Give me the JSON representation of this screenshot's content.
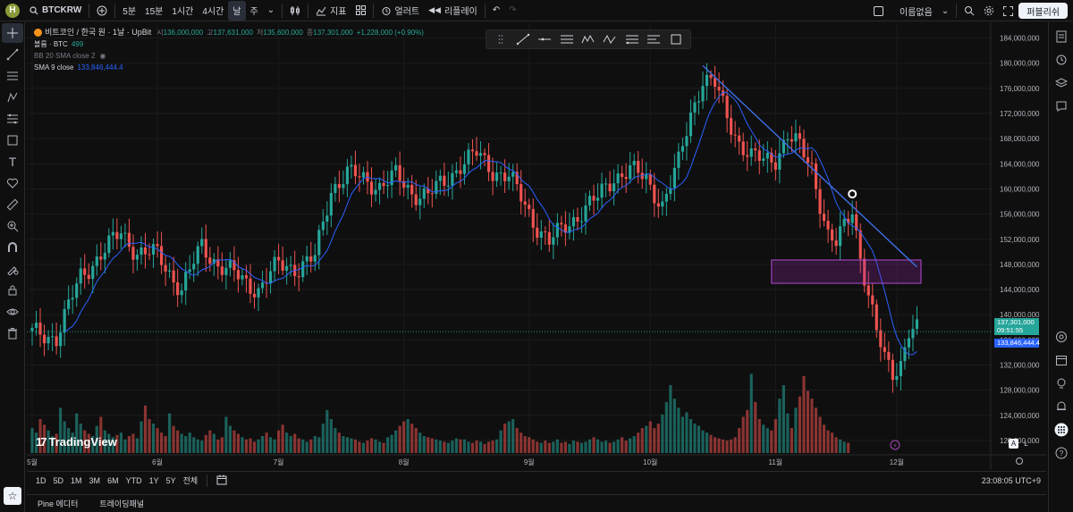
{
  "topbar": {
    "avatar_letter": "H",
    "symbol": "BTCKRW",
    "timeframes": [
      "5분",
      "15분",
      "1시간",
      "4시간",
      "날",
      "주"
    ],
    "active_timeframe": "날",
    "indicators_label": "지표",
    "alert_label": "얼러트",
    "replay_label": "리플레이",
    "layout_name": "이름없음",
    "publish_label": "퍼블리쉬"
  },
  "legend": {
    "title": "비트코인 / 한국 원 · 1날 · UpBit",
    "open_label": "시",
    "open": "136,000,000",
    "high_label": "고",
    "high": "137,631,000",
    "low_label": "저",
    "low": "135,600,000",
    "close_label": "종",
    "close": "137,301,000",
    "change": "+1,228,000 (+0.90%)",
    "volume_label": "볼륨 · BTC",
    "volume": "499",
    "bb_label": "BB 20 SMA close 2",
    "sma_label": "SMA 9 close",
    "sma_value": "133,846,444.4"
  },
  "price_tags": {
    "last_price": "137,301,000",
    "countdown": "09:51:55",
    "sma_value": "133,846,444.4"
  },
  "scale_buttons": [
    "A",
    "L"
  ],
  "range_buttons": [
    "1D",
    "5D",
    "1M",
    "3M",
    "6M",
    "YTD",
    "1Y",
    "5Y",
    "전체"
  ],
  "clock": "23:08:05 UTC+9",
  "panels": [
    "Pine 에디터",
    "트레이딩패널"
  ],
  "logo_text": "TradingView",
  "colors": {
    "up": "#26a69a",
    "down": "#ef5350",
    "sma": "#2962ff",
    "trendline": "#3d6fe6",
    "zone": "#9c27b0",
    "background": "#0f0f0f"
  },
  "chart_data": {
    "type": "candlestick",
    "series_name": "BTCKRW",
    "y_ticks": [
      120000000,
      124000000,
      128000000,
      132000000,
      136000000,
      140000000,
      144000000,
      148000000,
      152000000,
      156000000,
      160000000,
      164000000,
      168000000,
      172000000,
      176000000,
      180000000,
      184000000
    ],
    "ylim": [
      118000000,
      186500000
    ],
    "x_labels": [
      "5월",
      "6월",
      "7월",
      "8월",
      "9월",
      "10월",
      "11월",
      "12월"
    ],
    "x_label_index": [
      0,
      31,
      61,
      92,
      123,
      153,
      184,
      214
    ],
    "close_path": [
      [
        0,
        137000000
      ],
      [
        6,
        136500000
      ],
      [
        12,
        146000000
      ],
      [
        16,
        149000000
      ],
      [
        22,
        153000000
      ],
      [
        26,
        150000000
      ],
      [
        31,
        149500000
      ],
      [
        37,
        144000000
      ],
      [
        42,
        151000000
      ],
      [
        46,
        148000000
      ],
      [
        51,
        146000000
      ],
      [
        56,
        144000000
      ],
      [
        61,
        148000000
      ],
      [
        66,
        147500000
      ],
      [
        70,
        149000000
      ],
      [
        74,
        160000000
      ],
      [
        78,
        162500000
      ],
      [
        82,
        161500000
      ],
      [
        86,
        160500000
      ],
      [
        90,
        162000000
      ],
      [
        94,
        159500000
      ],
      [
        98,
        159000000
      ],
      [
        102,
        161000000
      ],
      [
        106,
        164000000
      ],
      [
        110,
        165500000
      ],
      [
        114,
        163000000
      ],
      [
        118,
        162000000
      ],
      [
        121,
        158500000
      ],
      [
        124,
        155000000
      ],
      [
        128,
        151500000
      ],
      [
        132,
        154000000
      ],
      [
        136,
        156500000
      ],
      [
        140,
        158500000
      ],
      [
        144,
        162000000
      ],
      [
        148,
        163000000
      ],
      [
        152,
        161500000
      ],
      [
        156,
        157500000
      ],
      [
        160,
        164000000
      ],
      [
        163,
        172000000
      ],
      [
        166,
        177500000
      ],
      [
        169,
        176500000
      ],
      [
        172,
        171500000
      ],
      [
        175,
        167500000
      ],
      [
        178,
        165000000
      ],
      [
        181,
        164500000
      ],
      [
        184,
        165000000
      ],
      [
        187,
        168500000
      ],
      [
        190,
        166500000
      ],
      [
        193,
        163500000
      ],
      [
        195,
        158000000
      ],
      [
        197,
        152500000
      ],
      [
        199,
        151000000
      ],
      [
        201,
        154000000
      ],
      [
        203,
        157000000
      ],
      [
        205,
        149500000
      ],
      [
        207,
        143000000
      ],
      [
        209,
        137000000
      ],
      [
        211,
        133000000
      ],
      [
        213,
        131000000
      ],
      [
        215,
        132500000
      ],
      [
        217,
        137300000
      ]
    ],
    "volume": [
      22,
      18,
      30,
      25,
      20,
      15,
      17,
      40,
      28,
      22,
      18,
      35,
      26,
      20,
      17,
      15,
      24,
      32,
      20,
      17,
      14,
      16,
      18,
      12,
      15,
      17,
      13,
      28,
      42,
      30,
      26,
      22,
      18,
      15,
      35,
      24,
      20,
      17,
      15,
      18,
      14,
      12,
      11,
      16,
      20,
      17,
      12,
      14,
      32,
      24,
      20,
      17,
      14,
      12,
      13,
      10,
      12,
      15,
      18,
      14,
      12,
      20,
      25,
      18,
      15,
      17,
      13,
      12,
      10,
      12,
      15,
      14,
      26,
      38,
      30,
      22,
      18,
      15,
      14,
      13,
      12,
      10,
      9,
      11,
      13,
      12,
      10,
      9,
      14,
      16,
      20,
      24,
      28,
      30,
      26,
      22,
      18,
      15,
      14,
      13,
      12,
      11,
      10,
      9,
      11,
      13,
      12,
      12,
      10,
      9,
      11,
      10,
      8,
      10,
      11,
      12,
      20,
      26,
      28,
      30,
      22,
      18,
      15,
      14,
      12,
      10,
      9,
      11,
      9,
      10,
      12,
      9,
      10,
      8,
      11,
      10,
      9,
      10,
      12,
      14,
      12,
      10,
      11,
      9,
      10,
      12,
      14,
      11,
      13,
      15,
      18,
      22,
      24,
      28,
      22,
      26,
      34,
      45,
      60,
      48,
      40,
      32,
      36,
      30,
      26,
      24,
      20,
      18,
      16,
      14,
      13,
      12,
      11,
      12,
      14,
      22,
      32,
      38,
      70,
      45,
      30,
      25,
      22,
      20,
      30,
      48,
      60,
      35,
      22,
      40,
      50,
      68,
      55,
      48,
      40,
      32,
      25,
      20,
      18,
      14,
      12,
      10,
      9
    ],
    "sma_period": 9,
    "annotations": {
      "trendline": [
        [
          166,
          179600000
        ],
        [
          219,
          147600000
        ]
      ],
      "point": [
        203,
        159200000
      ],
      "zone": [
        [
          183,
          145000000
        ],
        [
          220,
          148700000
        ]
      ]
    }
  }
}
